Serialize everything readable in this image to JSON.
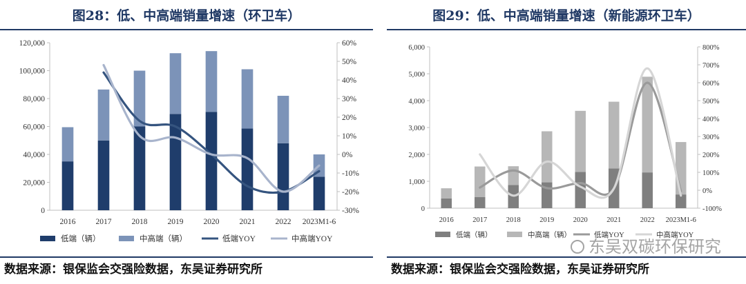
{
  "left": {
    "title": "图28：低、中高端销量增速（环卫车）",
    "source": "数据来源：银保监会交强险数据，东吴证券研究所"
  },
  "right": {
    "title": "图29：低、中高端销量增速（新能源环卫车）",
    "source": "数据来源：银保监会交强险数据，东吴证券研究所"
  },
  "watermark": "东吴双碳环保研究",
  "chart_data": [
    {
      "type": "bar",
      "stacked": true,
      "categories": [
        "2016",
        "2017",
        "2018",
        "2019",
        "2020",
        "2021",
        "2022",
        "2023M1-6"
      ],
      "series": [
        {
          "name": "低端（辆）",
          "kind": "bar",
          "axis": "left",
          "color": "#1f3d6b",
          "values": [
            35000,
            50000,
            60000,
            69000,
            70500,
            58500,
            48000,
            24000
          ]
        },
        {
          "name": "中高端（辆）",
          "kind": "bar",
          "axis": "left",
          "color": "#7c93b8",
          "values": [
            24500,
            36500,
            40000,
            43500,
            43500,
            42500,
            34000,
            16000
          ]
        },
        {
          "name": "低端YOY",
          "kind": "line",
          "axis": "right",
          "color": "#35547f",
          "values": [
            null,
            44,
            18,
            15,
            0,
            -17,
            -20,
            -9
          ]
        },
        {
          "name": "中高端YOY",
          "kind": "line",
          "axis": "right",
          "color": "#a8b4cc",
          "values": [
            null,
            48,
            10,
            9,
            0,
            -2,
            -20,
            -6
          ]
        }
      ],
      "ylim": [
        0,
        120000
      ],
      "yticks": [
        "0",
        "20,000",
        "40,000",
        "60,000",
        "80,000",
        "100,000",
        "120,000"
      ],
      "y2lim": [
        -30,
        60
      ],
      "y2ticks": [
        "-30%",
        "-20%",
        "-10%",
        "0%",
        "10%",
        "20%",
        "30%",
        "40%",
        "50%",
        "60%"
      ],
      "legend": "bottom",
      "grid": false
    },
    {
      "type": "bar",
      "stacked": true,
      "categories": [
        "2016",
        "2017",
        "2018",
        "2019",
        "2020",
        "2021",
        "2022",
        "2023M1-6"
      ],
      "series": [
        {
          "name": "低端（辆）",
          "kind": "bar",
          "axis": "left",
          "color": "#7f7f7f",
          "values": [
            360,
            410,
            860,
            960,
            1350,
            1480,
            1330,
            510
          ]
        },
        {
          "name": "中高端（辆）",
          "kind": "bar",
          "axis": "left",
          "color": "#b7b7b7",
          "values": [
            380,
            1140,
            700,
            1900,
            2270,
            2480,
            3560,
            1950
          ]
        },
        {
          "name": "低端YOY",
          "kind": "line",
          "axis": "right",
          "color": "#9a9a9a",
          "values": [
            null,
            15,
            110,
            12,
            40,
            10,
            600,
            -5
          ]
        },
        {
          "name": "中高端YOY",
          "kind": "line",
          "axis": "right",
          "color": "#d6d6d6",
          "values": [
            null,
            200,
            -30,
            160,
            20,
            10,
            680,
            -30
          ]
        }
      ],
      "ylim": [
        0,
        6000
      ],
      "yticks": [
        "0",
        "1,000",
        "2,000",
        "3,000",
        "4,000",
        "5,000",
        "6,000"
      ],
      "y2lim": [
        -100,
        800
      ],
      "y2ticks": [
        "-100%",
        "0%",
        "100%",
        "200%",
        "300%",
        "400%",
        "500%",
        "600%",
        "700%",
        "800%"
      ],
      "legend": "bottom",
      "grid": false
    }
  ]
}
